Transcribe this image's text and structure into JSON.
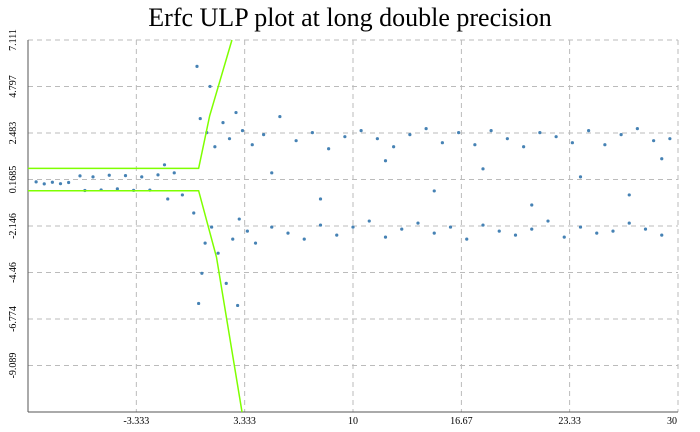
{
  "chart_data": {
    "type": "scatter",
    "title": "Erfc ULP plot at long double precision",
    "xlim": [
      -10,
      30
    ],
    "ylim": [
      -11.403,
      7.111
    ],
    "xticks": [
      -3.333,
      3.333,
      10,
      16.67,
      23.33,
      30
    ],
    "yticks": [
      7.111,
      4.797,
      2.483,
      0.1685,
      -2.146,
      -4.46,
      -6.774,
      -9.089
    ],
    "grid": true,
    "series": [
      {
        "color": "#4682b4",
        "x": [
          -9.5,
          -9,
          -8.5,
          -8,
          -7.5,
          -6.8,
          -6.5,
          -6,
          -5.5,
          -5,
          -4.5,
          -4,
          -3.5,
          -3,
          -2.5,
          -2,
          -1.6,
          -1.4,
          -1,
          -0.5,
          0.2,
          0.4,
          0.5,
          0.6,
          0.7,
          0.9,
          1,
          1.2,
          1.3,
          1.5,
          1.7,
          2,
          2.2,
          2.4,
          2.6,
          2.8,
          3,
          3.2,
          3.5,
          3.8,
          4,
          4.5,
          5,
          5.5,
          6,
          6.5,
          7,
          7.5,
          8,
          8.5,
          9,
          9.5,
          10,
          10.5,
          11,
          11.5,
          12,
          12.5,
          13,
          13.5,
          14,
          14.5,
          15,
          15.5,
          16,
          16.5,
          17,
          17.5,
          18,
          18.5,
          19,
          19.5,
          20,
          20.5,
          21,
          21.5,
          22,
          22.5,
          23,
          23.5,
          24,
          24.5,
          25,
          25.5,
          26,
          26.5,
          27,
          27.5,
          28,
          28.5,
          29,
          29.5,
          5,
          8,
          12,
          15,
          18,
          21,
          24,
          27,
          29,
          2.9
        ],
        "values": [
          0.05,
          -0.05,
          0.03,
          -0.04,
          0.02,
          0.35,
          -0.38,
          0.3,
          -0.35,
          0.38,
          -0.3,
          0.36,
          -0.37,
          0.3,
          -0.36,
          0.4,
          0.9,
          -0.8,
          0.5,
          -0.6,
          -1.5,
          5.8,
          -6,
          3.2,
          -4.5,
          -3,
          2.5,
          4.8,
          -2.2,
          1.8,
          -3.5,
          3,
          -5,
          2.2,
          -2.8,
          3.5,
          -1.8,
          2.6,
          -2.4,
          1.9,
          -3,
          2.4,
          -2.2,
          3.3,
          -2.5,
          2.1,
          -2.8,
          2.5,
          -2.1,
          1.7,
          -2.6,
          2.3,
          -2.2,
          2.6,
          -1.9,
          2.2,
          -2.7,
          1.8,
          -2.3,
          2.4,
          -2,
          2.7,
          -2.5,
          2,
          -2.2,
          2.5,
          -2.8,
          1.9,
          -2.1,
          2.6,
          -2.4,
          2.2,
          -2.6,
          1.8,
          -2.3,
          2.5,
          -1.9,
          2.3,
          -2.7,
          2,
          -2.2,
          2.6,
          -2.5,
          1.9,
          -2.4,
          2.4,
          -2,
          2.7,
          -2.3,
          2.1,
          -2.6,
          2.2,
          0.5,
          -0.8,
          1.1,
          -0.4,
          0.7,
          -1.1,
          0.3,
          -0.6,
          1.2,
          -6.1
        ]
      }
    ],
    "lines": [
      {
        "color": "#7fff00",
        "x": [
          -10,
          0.5,
          1.18,
          2.55
        ],
        "values": [
          0.72,
          0.72,
          3.34,
          7.111
        ]
      },
      {
        "color": "#7fff00",
        "x": [
          -10,
          0.5,
          1.6,
          3.17
        ],
        "values": [
          -0.39,
          -0.39,
          -3.7,
          -11.403
        ]
      }
    ]
  }
}
